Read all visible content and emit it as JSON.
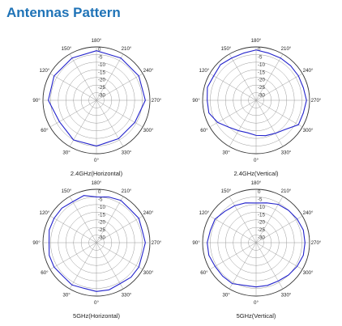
{
  "page": {
    "title": "Antennas Pattern"
  },
  "colors": {
    "title": "#1f73b7",
    "pattern_line": "#2222cc",
    "grid": "#9a9a9a"
  },
  "chart_data": [
    {
      "type": "polar-line",
      "title": "2.4GHz(Horizontal)",
      "angle_ticks": [
        "0°",
        "30°",
        "60°",
        "90°",
        "120°",
        "150°",
        "180°",
        "210°",
        "240°",
        "270°",
        "300°",
        "330°"
      ],
      "radial_ticks": [
        "0",
        "-5",
        "-10",
        "-15",
        "-20",
        "-25",
        "-30"
      ],
      "rlim": [
        -35,
        0
      ],
      "angles": [
        0,
        30,
        60,
        90,
        120,
        150,
        180,
        210,
        240,
        270,
        300,
        330
      ],
      "values": [
        -5,
        -5,
        -7,
        -3.5,
        -3,
        -3,
        -2.5,
        -3,
        -3,
        -3,
        -6,
        -6
      ]
    },
    {
      "type": "polar-line",
      "title": "2.4GHz(Vertical)",
      "angle_ticks": [
        "0°",
        "30°",
        "60°",
        "90°",
        "120°",
        "150°",
        "180°",
        "210°",
        "240°",
        "270°",
        "300°",
        "330°"
      ],
      "radial_ticks": [
        "0",
        "-5",
        "-10",
        "-15",
        "-20",
        "-25",
        "-30"
      ],
      "rlim": [
        -35,
        0
      ],
      "angles": [
        0,
        15,
        30,
        45,
        60,
        75,
        90,
        105,
        120,
        135,
        150,
        165,
        180,
        195,
        210,
        225,
        240,
        255,
        270,
        285,
        300,
        315,
        330,
        345
      ],
      "values": [
        -12,
        -13,
        -12,
        -10,
        -6,
        -3,
        -3,
        -2,
        -3,
        -2,
        -3,
        -3,
        -2,
        -3,
        -3,
        -3,
        -3,
        -3,
        -2,
        -3,
        -3,
        -8,
        -10,
        -11
      ]
    },
    {
      "type": "polar-line",
      "title": "5GHz(Horizontal)",
      "angle_ticks": [
        "0°",
        "30°",
        "60°",
        "90°",
        "120°",
        "150°",
        "180°",
        "210°",
        "240°",
        "270°",
        "300°",
        "330°"
      ],
      "radial_ticks": [
        "0",
        "-5",
        "-10",
        "-15",
        "-20",
        "-25",
        "-30"
      ],
      "rlim": [
        -35,
        0
      ],
      "angles": [
        0,
        15,
        30,
        45,
        60,
        75,
        90,
        105,
        120,
        135,
        150,
        165,
        180,
        195,
        210,
        225,
        240,
        255,
        270,
        285,
        300,
        315,
        330,
        345
      ],
      "values": [
        -3,
        -4,
        -3,
        -4,
        -3,
        -3,
        -4,
        -3,
        -3,
        -3,
        -4,
        -3,
        -5,
        -4,
        -3,
        -4,
        -3,
        -4,
        -3,
        -4,
        -3,
        -3,
        -4,
        -3
      ]
    },
    {
      "type": "polar-line",
      "title": "5GHz(Vertical)",
      "angle_ticks": [
        "0°",
        "30°",
        "60°",
        "90°",
        "120°",
        "150°",
        "180°",
        "210°",
        "240°",
        "270°",
        "300°",
        "330°"
      ],
      "radial_ticks": [
        "0",
        "-5",
        "-10",
        "-15",
        "-20",
        "-25",
        "-30"
      ],
      "rlim": [
        -35,
        0
      ],
      "angles": [
        0,
        15,
        30,
        45,
        60,
        75,
        90,
        105,
        120,
        135,
        150,
        165,
        180,
        195,
        210,
        225,
        240,
        255,
        270,
        285,
        300,
        315,
        330,
        345
      ],
      "values": [
        -6,
        -6,
        -4,
        -4,
        -4,
        -3,
        -3,
        -4,
        -4,
        -6,
        -7,
        -8,
        -9,
        -8,
        -6,
        -5,
        -4,
        -3,
        -3,
        -3,
        -4,
        -5,
        -6,
        -6
      ]
    }
  ]
}
